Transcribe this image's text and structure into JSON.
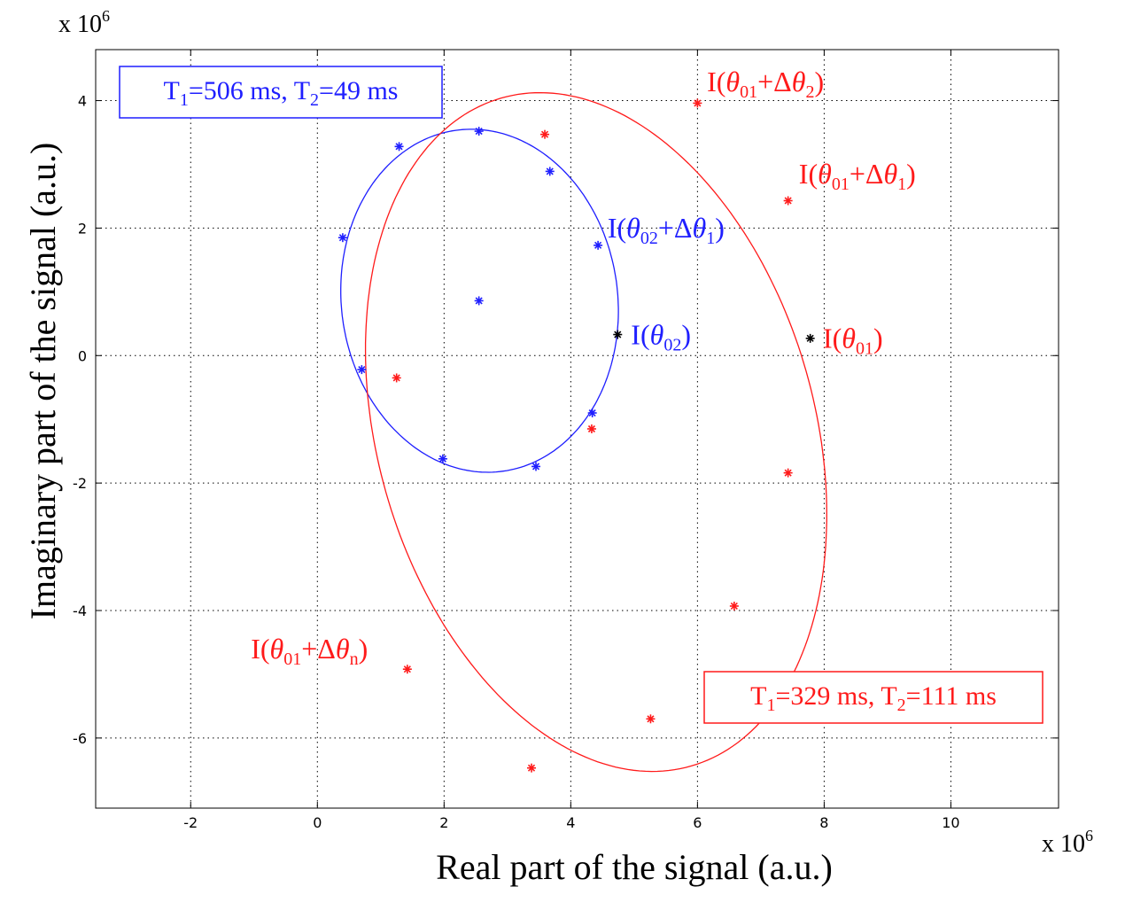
{
  "chart_data": {
    "type": "scatter",
    "xlabel": "Real part of the signal (a.u.)",
    "ylabel": "Imaginary part of the signal (a.u.)",
    "x_multiplier": "x 10",
    "y_multiplier": "x 10",
    "multiplier_exp": "6",
    "xlim": [
      -3.5,
      11.7
    ],
    "ylim": [
      -7.1,
      4.8
    ],
    "xticks": [
      -2,
      0,
      2,
      4,
      6,
      8,
      10
    ],
    "yticks": [
      -6,
      -4,
      -2,
      0,
      2,
      4
    ],
    "grid": true,
    "colors": {
      "blue": "#1f1fff",
      "red": "#ff1a1a",
      "black": "#000000"
    },
    "series": [
      {
        "color": "blue",
        "curve": {
          "type": "ellipse",
          "cx": 2.56,
          "cy": 0.86,
          "rx": 2.18,
          "ry": 2.7,
          "rot_deg": 8
        },
        "points": [
          [
            0.4,
            1.85
          ],
          [
            1.29,
            3.28
          ],
          [
            2.55,
            3.52
          ],
          [
            3.67,
            2.89
          ],
          [
            4.43,
            1.73
          ],
          [
            4.34,
            -0.9
          ],
          [
            3.45,
            -1.74
          ],
          [
            1.98,
            -1.62
          ],
          [
            0.7,
            -0.22
          ],
          [
            2.55,
            0.86
          ]
        ],
        "black_points": [
          [
            4.74,
            0.33
          ]
        ]
      },
      {
        "color": "red",
        "curve": {
          "type": "ellipse",
          "cx": 4.4,
          "cy": -1.2,
          "rx": 3.45,
          "ry": 5.45,
          "rot_deg": 16
        },
        "points": [
          [
            3.59,
            3.47
          ],
          [
            6.0,
            3.96
          ],
          [
            7.43,
            2.43
          ],
          [
            7.43,
            -1.84
          ],
          [
            6.58,
            -3.93
          ],
          [
            5.26,
            -5.7
          ],
          [
            3.38,
            -6.47
          ],
          [
            1.42,
            -4.92
          ],
          [
            1.25,
            -0.35
          ],
          [
            4.33,
            -1.15
          ]
        ],
        "black_points": [
          [
            7.78,
            0.27
          ]
        ]
      }
    ],
    "annotations": [
      {
        "color": "red",
        "x": 6.15,
        "y": 4.15,
        "parts": [
          "I(",
          "θ",
          "01",
          "+Δ",
          "θ",
          "2",
          ")"
        ]
      },
      {
        "color": "red",
        "x": 7.6,
        "y": 2.7,
        "parts": [
          "I(",
          "θ",
          "01",
          "+Δ",
          "θ",
          "1",
          ")"
        ]
      },
      {
        "color": "blue",
        "x": 4.58,
        "y": 1.85,
        "parts": [
          "I(",
          "θ",
          "02",
          "+Δ",
          "θ",
          "1",
          ")"
        ]
      },
      {
        "color": "blue",
        "x": 4.95,
        "y": 0.18,
        "parts": [
          "I(",
          "θ",
          "02",
          ")",
          "",
          "",
          ""
        ]
      },
      {
        "color": "red",
        "x": 7.98,
        "y": 0.12,
        "parts": [
          "I(",
          "θ",
          "01",
          ")",
          "",
          "",
          ""
        ]
      },
      {
        "color": "red",
        "x": -1.05,
        "y": -4.75,
        "parts": [
          "I(",
          "θ",
          "01",
          "+Δ",
          "θ",
          "n",
          ")"
        ]
      }
    ],
    "boxes": [
      {
        "color": "blue",
        "t1": "506 ms",
        "t2": "49 ms",
        "t1_label": "T",
        "sub1": "1",
        "t2_label": "T",
        "sub2": "2"
      },
      {
        "color": "red",
        "t1": "329 ms",
        "t2": "111 ms",
        "t1_label": "T",
        "sub1": "1",
        "t2_label": "T",
        "sub2": "2"
      }
    ]
  }
}
